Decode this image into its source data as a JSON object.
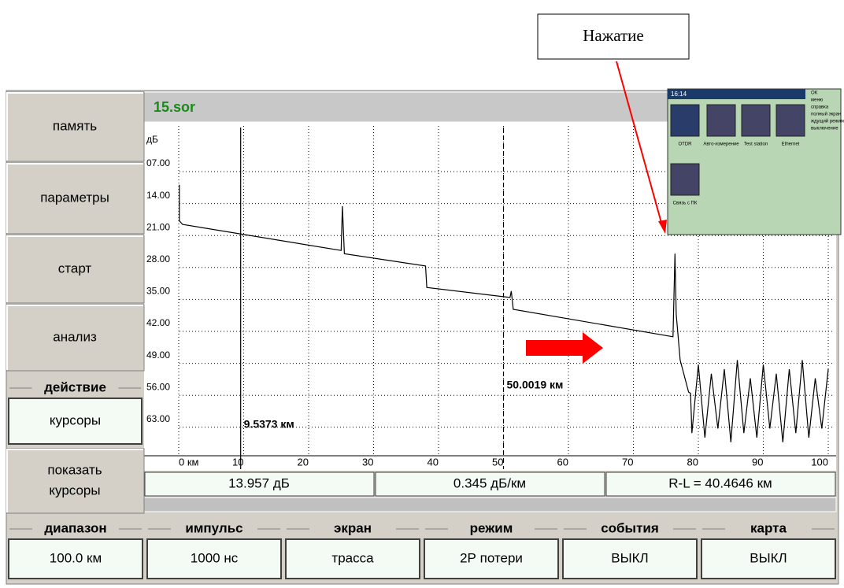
{
  "annotation": "Нажатие",
  "menu_left": [
    "память",
    "параметры",
    "старт",
    "анализ"
  ],
  "action": {
    "label": "действие",
    "value": "курсоры"
  },
  "show_button": [
    "показать",
    "курсоры"
  ],
  "file": "15.sor",
  "trace": {
    "y_unit": "дБ",
    "ylim": [
      0,
      70
    ],
    "yticks": [
      {
        "value": 7,
        "label": "07.00"
      },
      {
        "value": 14,
        "label": "14.00"
      },
      {
        "value": 21,
        "label": "21.00"
      },
      {
        "value": 28,
        "label": "28.00"
      },
      {
        "value": 35,
        "label": "35.00"
      },
      {
        "value": 42,
        "label": "42.00"
      },
      {
        "value": 49,
        "label": "49.00"
      },
      {
        "value": 56,
        "label": "56.00"
      },
      {
        "value": 63,
        "label": "63.00"
      }
    ],
    "xlim": [
      0,
      100
    ],
    "xticks": [
      {
        "value": 0,
        "label": "0 км"
      },
      10,
      20,
      30,
      40,
      50,
      60,
      70,
      80,
      90,
      100
    ],
    "x": [
      0.1,
      0.1,
      0.6,
      25.0,
      25.2,
      25.5,
      38.0,
      38.2,
      51.0,
      51.2,
      51.5,
      76.1,
      76.4,
      76.6,
      77.2,
      78.5,
      78.8,
      79,
      80,
      81,
      82,
      83,
      84,
      85,
      86,
      87,
      88,
      89,
      90,
      91,
      92,
      93,
      94,
      95,
      96,
      97,
      98,
      99,
      100
    ],
    "y": [
      11.6,
      19.5,
      20.3,
      26.0,
      16.3,
      26.7,
      29.4,
      34.1,
      36.3,
      34.9,
      38.9,
      44.9,
      26.7,
      40,
      50,
      57,
      57.3,
      66,
      51,
      67,
      53,
      65,
      52,
      68,
      50,
      66,
      54,
      67,
      51,
      65,
      53,
      68,
      52,
      66,
      50,
      67,
      54,
      65,
      52
    ],
    "cursors": [
      {
        "km": 9.5373,
        "label": "9.5373 км",
        "style": "solid"
      },
      {
        "km": 50.0019,
        "label": "50.0019 км",
        "style": "dashed"
      }
    ]
  },
  "readouts": [
    "13.957 дБ",
    "0.345 дБ/км",
    "R-L = 40.4646 км"
  ],
  "bottom": [
    {
      "label": "диапазон",
      "value": "100.0 км"
    },
    {
      "label": "импульс",
      "value": "1000 нс"
    },
    {
      "label": "экран",
      "value": "трасса"
    },
    {
      "label": "режим",
      "value": "2Р потери"
    },
    {
      "label": "события",
      "value": "ВЫКЛ"
    },
    {
      "label": "карта",
      "value": "ВЫКЛ"
    }
  ],
  "inset": {
    "time": "16:14",
    "icons": [
      "OTDR",
      "Авто-измерение",
      "Test station",
      "Ethernet",
      "Связь с ПК"
    ],
    "menu": [
      "OK",
      "меню",
      "справка",
      "полный экран",
      "ждущий режим",
      "выключение"
    ]
  }
}
